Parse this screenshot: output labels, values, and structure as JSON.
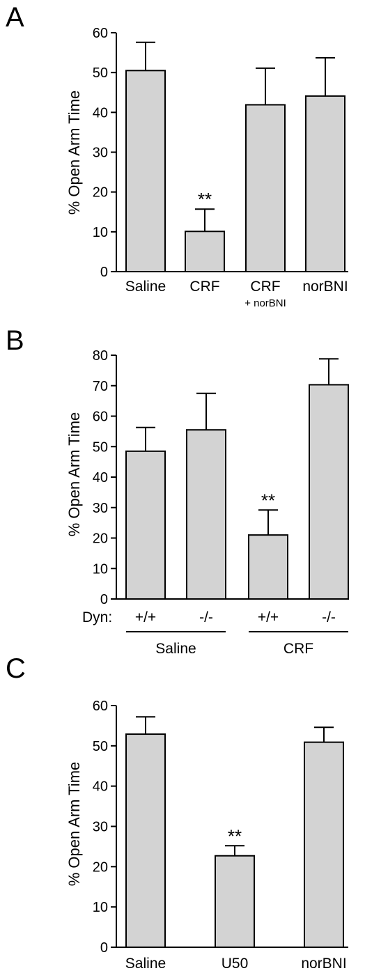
{
  "chart_data": [
    {
      "panel_label": "A",
      "type": "bar",
      "ylabel": "% Open Arm Time",
      "ylim": [
        0,
        60
      ],
      "yticks": [
        "0",
        "10",
        "20",
        "30",
        "40",
        "50",
        "60"
      ],
      "categories": [
        "Saline",
        "CRF",
        "CRF",
        "norBNI"
      ],
      "sublabels": [
        "",
        "",
        "+ norBNI",
        ""
      ],
      "values": [
        50.5,
        10.1,
        41.9,
        44.1
      ],
      "errors": [
        7.1,
        5.6,
        9.2,
        9.6
      ],
      "annotations": [
        "",
        "**",
        "",
        ""
      ],
      "bar_color": "#d3d3d3"
    },
    {
      "panel_label": "B",
      "type": "bar",
      "ylabel": "% Open Arm Time",
      "ylim": [
        0,
        80
      ],
      "yticks": [
        "0",
        "10",
        "20",
        "30",
        "40",
        "50",
        "60",
        "70",
        "80"
      ],
      "categories": [
        "+/+",
        "-/-",
        "+/+",
        "-/-"
      ],
      "row_label": "Dyn:",
      "groups": [
        "Saline",
        "CRF"
      ],
      "values": [
        48.5,
        55.5,
        21.0,
        70.3
      ],
      "errors": [
        7.8,
        12.0,
        8.2,
        8.5
      ],
      "annotations": [
        "",
        "",
        "**",
        ""
      ],
      "bar_color": "#d3d3d3"
    },
    {
      "panel_label": "C",
      "type": "bar",
      "ylabel": "% Open Arm Time",
      "ylim": [
        0,
        60
      ],
      "yticks": [
        "0",
        "10",
        "20",
        "30",
        "40",
        "50",
        "60"
      ],
      "categories": [
        "Saline",
        "U50",
        "norBNI"
      ],
      "values": [
        52.9,
        22.7,
        50.9
      ],
      "errors": [
        4.3,
        2.5,
        3.7
      ],
      "annotations": [
        "",
        "**",
        ""
      ],
      "bar_color": "#d3d3d3"
    }
  ]
}
